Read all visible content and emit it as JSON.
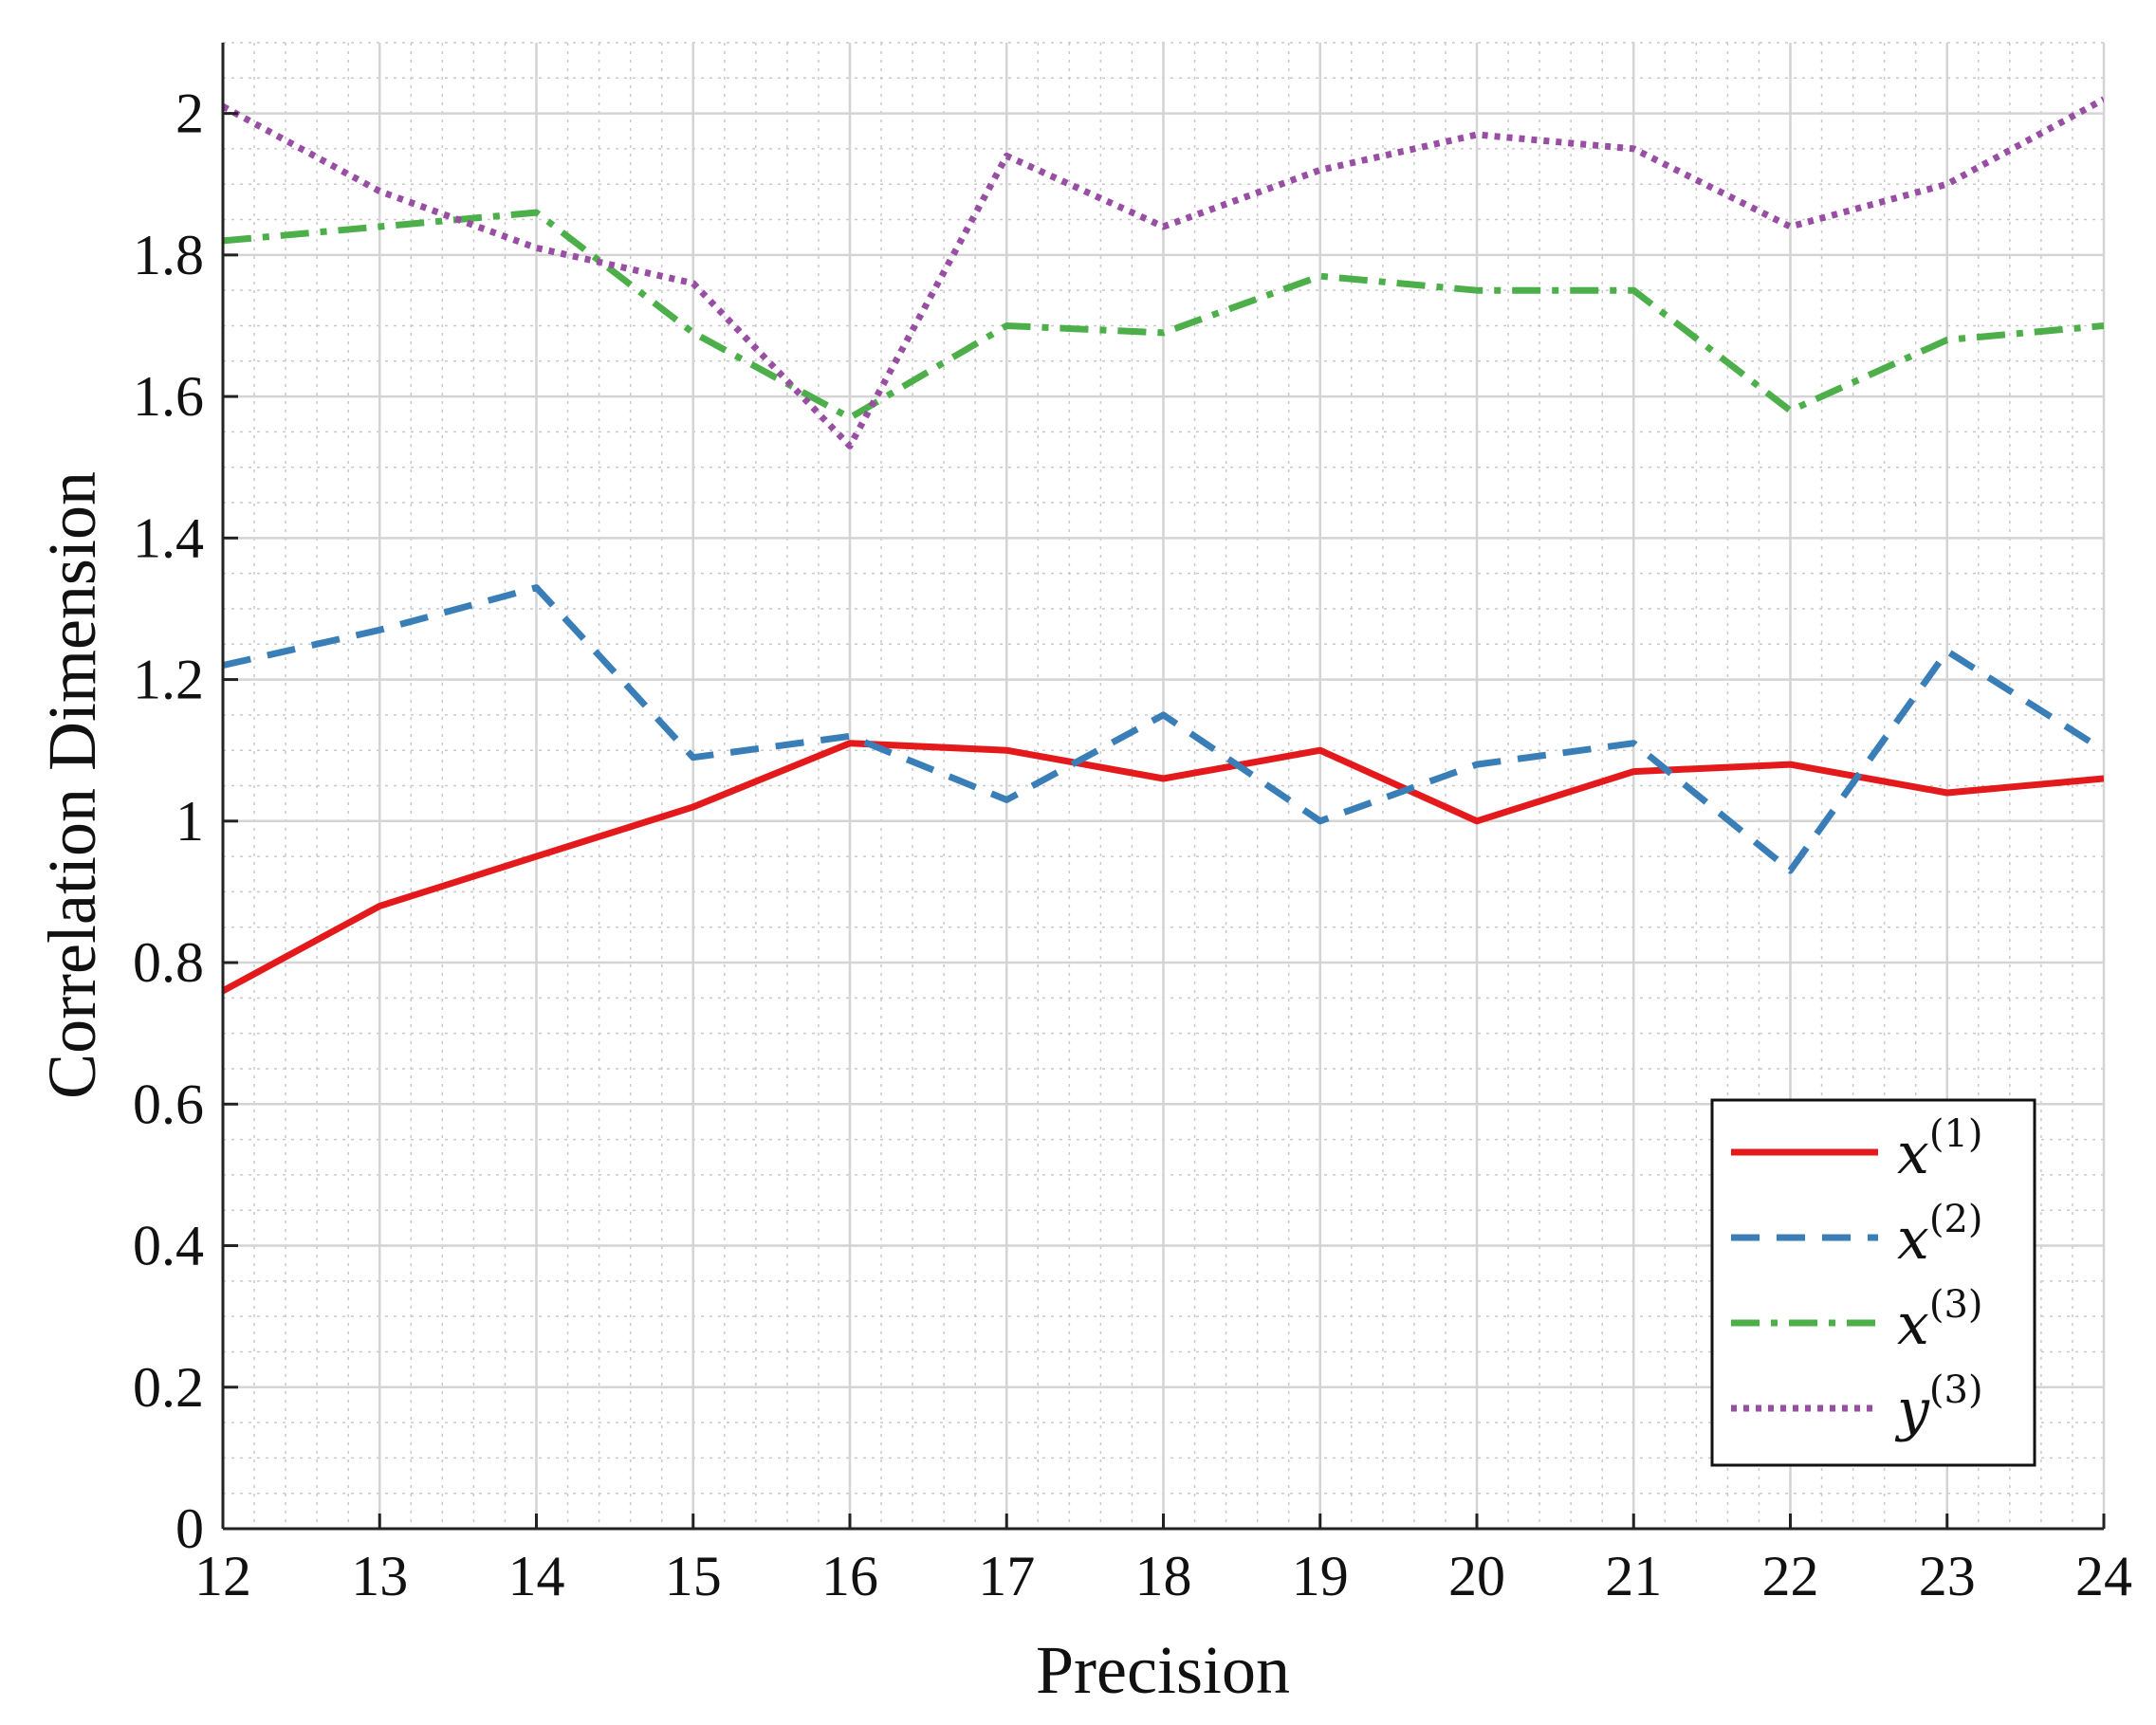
{
  "chart_data": {
    "type": "line",
    "xlabel": "Precision",
    "ylabel": "Correlation Dimension",
    "xlim": [
      12,
      24
    ],
    "ylim": [
      0,
      2.1
    ],
    "xticks": [
      12,
      13,
      14,
      15,
      16,
      17,
      18,
      19,
      20,
      21,
      22,
      23,
      24
    ],
    "yticks": [
      0,
      0.2,
      0.4,
      0.6,
      0.8,
      1,
      1.2,
      1.4,
      1.6,
      1.8,
      2
    ],
    "ytick_labels": [
      "0",
      "0.2",
      "0.4",
      "0.6",
      "0.8",
      "1",
      "1.2",
      "1.4",
      "1.6",
      "1.8",
      "2"
    ],
    "grid": true,
    "minor_grid": true,
    "legend_position": "bottom-right",
    "x": [
      12,
      13,
      14,
      15,
      16,
      17,
      18,
      19,
      20,
      21,
      22,
      23,
      24
    ],
    "series": [
      {
        "name": "x",
        "sup": "(1)",
        "color": "#e3191c",
        "style": "solid",
        "values": [
          0.76,
          0.88,
          0.95,
          1.02,
          1.11,
          1.1,
          1.06,
          1.1,
          1.0,
          1.07,
          1.08,
          1.04,
          1.06
        ]
      },
      {
        "name": "x",
        "sup": "(2)",
        "color": "#3a7eb8",
        "style": "dashed",
        "values": [
          1.22,
          1.27,
          1.33,
          1.09,
          1.12,
          1.03,
          1.15,
          1.0,
          1.08,
          1.11,
          0.93,
          1.24,
          1.1
        ]
      },
      {
        "name": "x",
        "sup": "(3)",
        "color": "#4caf4a",
        "style": "dashdot",
        "values": [
          1.82,
          1.84,
          1.86,
          1.69,
          1.57,
          1.7,
          1.69,
          1.77,
          1.75,
          1.75,
          1.58,
          1.68,
          1.7
        ]
      },
      {
        "name": "y",
        "sup": "(3)",
        "color": "#984ea3",
        "style": "dotted",
        "values": [
          2.01,
          1.89,
          1.81,
          1.76,
          1.53,
          1.94,
          1.84,
          1.92,
          1.97,
          1.95,
          1.84,
          1.9,
          2.02
        ]
      }
    ]
  }
}
